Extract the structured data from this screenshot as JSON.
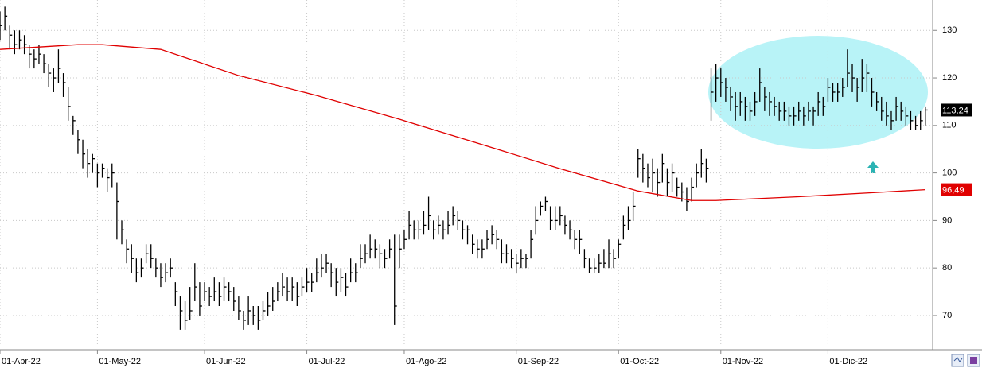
{
  "chart_data": {
    "type": "ohlc",
    "xlim": [
      0,
      191.5
    ],
    "ylim": [
      62.8,
      136.4
    ],
    "yticks": [
      70,
      80,
      90,
      100,
      110,
      120,
      130
    ],
    "xticks": [
      {
        "value": 0,
        "label": "01-Abr-22"
      },
      {
        "value": 20,
        "label": "01-May-22"
      },
      {
        "value": 42,
        "label": "01-Jun-22"
      },
      {
        "value": 63,
        "label": "01-Jul-22"
      },
      {
        "value": 83,
        "label": "01-Ago-22"
      },
      {
        "value": 106,
        "label": "01-Sep-22"
      },
      {
        "value": 127,
        "label": "01-Oct-22"
      },
      {
        "value": 148,
        "label": "01-Nov-22"
      },
      {
        "value": 170,
        "label": "01-Dic-22"
      }
    ],
    "grid": true,
    "series": [
      {
        "type": "ohlc",
        "color": "#000000",
        "label_color": "#000000",
        "last_label": {
          "value": 113.24,
          "label": "113,24"
        },
        "x": [
          0,
          1,
          2,
          3,
          4,
          5,
          6,
          7,
          8,
          9,
          10,
          11,
          12,
          13,
          14,
          15,
          16,
          17,
          18,
          19,
          20,
          21,
          22,
          23,
          24,
          25,
          26,
          27,
          28,
          29,
          30,
          31,
          32,
          33,
          34,
          35,
          36,
          37,
          38,
          39,
          40,
          41,
          42,
          43,
          44,
          45,
          46,
          47,
          48,
          49,
          50,
          51,
          52,
          53,
          54,
          55,
          56,
          57,
          58,
          59,
          60,
          61,
          62,
          63,
          64,
          65,
          66,
          67,
          68,
          69,
          70,
          71,
          72,
          73,
          74,
          75,
          76,
          77,
          78,
          79,
          80,
          81,
          82,
          83,
          84,
          85,
          86,
          87,
          88,
          89,
          90,
          91,
          92,
          93,
          94,
          95,
          96,
          97,
          98,
          99,
          100,
          101,
          102,
          103,
          104,
          105,
          106,
          107,
          108,
          109,
          110,
          111,
          112,
          113,
          114,
          115,
          116,
          117,
          118,
          119,
          120,
          121,
          122,
          123,
          124,
          125,
          126,
          127,
          128,
          129,
          130,
          131,
          132,
          133,
          134,
          135,
          136,
          137,
          138,
          139,
          140,
          141,
          142,
          143,
          144,
          145,
          146,
          147,
          148,
          149,
          150,
          151,
          152,
          153,
          154,
          155,
          156,
          157,
          158,
          159,
          160,
          161,
          162,
          163,
          164,
          165,
          166,
          167,
          168,
          169,
          170,
          171,
          172,
          173,
          174,
          175,
          176,
          177,
          178,
          179,
          180,
          181,
          182,
          183,
          184,
          185,
          186,
          187,
          188,
          189,
          190
        ],
        "high": [
          134,
          135,
          131,
          130,
          130,
          129,
          127,
          126,
          127,
          125,
          123,
          122,
          126,
          121,
          118,
          112,
          109,
          107,
          105,
          104,
          102,
          102,
          101,
          102,
          98,
          90,
          86,
          85,
          82,
          82,
          85,
          85,
          82,
          81,
          81,
          82,
          77,
          74,
          73,
          76,
          81,
          77,
          77,
          76,
          78,
          77,
          78,
          77,
          76,
          74,
          71,
          74,
          72,
          72,
          73,
          75,
          76,
          77,
          79,
          78,
          78,
          77,
          78,
          80,
          79,
          82,
          83,
          83,
          81,
          80,
          80,
          79,
          82,
          81,
          85,
          85,
          87,
          86,
          85,
          84,
          86,
          87,
          87,
          88,
          92,
          90,
          90,
          92,
          95,
          90,
          91,
          90,
          92,
          93,
          92,
          90,
          89,
          87,
          86,
          86,
          88,
          89,
          88,
          86,
          85,
          84,
          83,
          84,
          83,
          88,
          93,
          94,
          95,
          93,
          93,
          93,
          91,
          90,
          88,
          88,
          84,
          82,
          82,
          83,
          84,
          86,
          84,
          86,
          91,
          93,
          96,
          105,
          104,
          102,
          103,
          101,
          104,
          101,
          102,
          99,
          98,
          97,
          99,
          102,
          105,
          103,
          122,
          123,
          122,
          120,
          118,
          117,
          117,
          116,
          115,
          117,
          122,
          118,
          117,
          116,
          115,
          115,
          114,
          114,
          115,
          114,
          115,
          114,
          117,
          116,
          120,
          119,
          119,
          120,
          126,
          123,
          120,
          124,
          123,
          120,
          117,
          116,
          115,
          113,
          116,
          115,
          114,
          113,
          112,
          113,
          114
        ],
        "low": [
          128,
          130,
          126,
          125,
          126,
          125,
          122,
          122,
          123,
          121,
          118,
          117,
          119,
          116,
          111,
          108,
          104,
          101,
          99,
          100,
          97,
          99,
          96,
          97,
          86,
          85,
          81,
          79,
          77,
          78,
          81,
          80,
          78,
          76,
          77,
          78,
          72,
          67,
          67,
          69,
          73,
          70,
          73,
          72,
          73,
          72,
          73,
          73,
          71,
          69,
          67,
          68,
          68,
          67,
          69,
          70,
          71,
          73,
          74,
          73,
          73,
          72,
          74,
          75,
          75,
          77,
          78,
          79,
          76,
          74,
          75,
          74,
          77,
          77,
          80,
          81,
          82,
          82,
          80,
          80,
          82,
          68,
          80,
          84,
          86,
          86,
          86,
          87,
          88,
          86,
          87,
          86,
          87,
          89,
          88,
          86,
          85,
          83,
          82,
          82,
          84,
          85,
          84,
          81,
          81,
          80,
          79,
          80,
          80,
          82,
          87,
          91,
          92,
          88,
          88,
          89,
          87,
          86,
          84,
          83,
          80,
          79,
          79,
          79,
          80,
          80,
          80,
          82,
          86,
          88,
          90,
          99,
          98,
          97,
          96,
          95,
          98,
          95,
          96,
          95,
          94,
          92,
          94,
          97,
          99,
          98,
          111,
          115,
          116,
          115,
          113,
          111,
          112,
          111,
          111,
          112,
          115,
          113,
          112,
          112,
          111,
          111,
          110,
          110,
          111,
          110,
          111,
          110,
          112,
          112,
          115,
          115,
          115,
          116,
          118,
          117,
          115,
          117,
          117,
          114,
          113,
          111,
          110,
          109,
          111,
          111,
          110,
          109,
          109,
          109,
          110
        ],
        "close": [
          131,
          133,
          129,
          127,
          128,
          127,
          125,
          124,
          125,
          123,
          121,
          120,
          122,
          119,
          114,
          111,
          107,
          104,
          102,
          103,
          100,
          101,
          99,
          100,
          94,
          88,
          84,
          82,
          79,
          80,
          83,
          82,
          80,
          78,
          79,
          80,
          75,
          71,
          69,
          71,
          76,
          72,
          75,
          74,
          75,
          74,
          76,
          75,
          73,
          71,
          69,
          71,
          70,
          69,
          71,
          72,
          73,
          75,
          76,
          75,
          76,
          74,
          76,
          77,
          77,
          79,
          80,
          81,
          79,
          77,
          78,
          76,
          79,
          79,
          82,
          83,
          84,
          84,
          83,
          82,
          84,
          72,
          84,
          86,
          89,
          88,
          88,
          89,
          91,
          88,
          89,
          88,
          89,
          91,
          90,
          88,
          88,
          85,
          84,
          84,
          86,
          87,
          86,
          83,
          83,
          82,
          81,
          82,
          82,
          86,
          90,
          93,
          94,
          90,
          90,
          91,
          89,
          88,
          86,
          86,
          82,
          80,
          80,
          81,
          81,
          83,
          82,
          85,
          89,
          90,
          93,
          103,
          101,
          99,
          100,
          98,
          102,
          98,
          100,
          97,
          96,
          94,
          97,
          100,
          102,
          101,
          117,
          120,
          119,
          118,
          116,
          114,
          115,
          114,
          113,
          115,
          119,
          116,
          115,
          114,
          113,
          113,
          112,
          112,
          113,
          112,
          113,
          113,
          115,
          114,
          118,
          117,
          117,
          118,
          121,
          120,
          118,
          120,
          121,
          117,
          115,
          113,
          112,
          111,
          114,
          113,
          112,
          111,
          110,
          111,
          113.24
        ]
      },
      {
        "type": "line",
        "color": "#e00000",
        "label_color": "#e00000",
        "last_label": {
          "value": 96.49,
          "label": "96,49"
        },
        "x": [
          0,
          16,
          21,
          33,
          49,
          65,
          82,
          98,
          115,
          131,
          142,
          147,
          164,
          180,
          190
        ],
        "values": [
          126,
          127,
          127,
          126,
          120.5,
          116.3,
          111.3,
          106.3,
          100.9,
          96.2,
          94.2,
          94.2,
          95,
          95.9,
          96.49
        ]
      }
    ]
  }
}
